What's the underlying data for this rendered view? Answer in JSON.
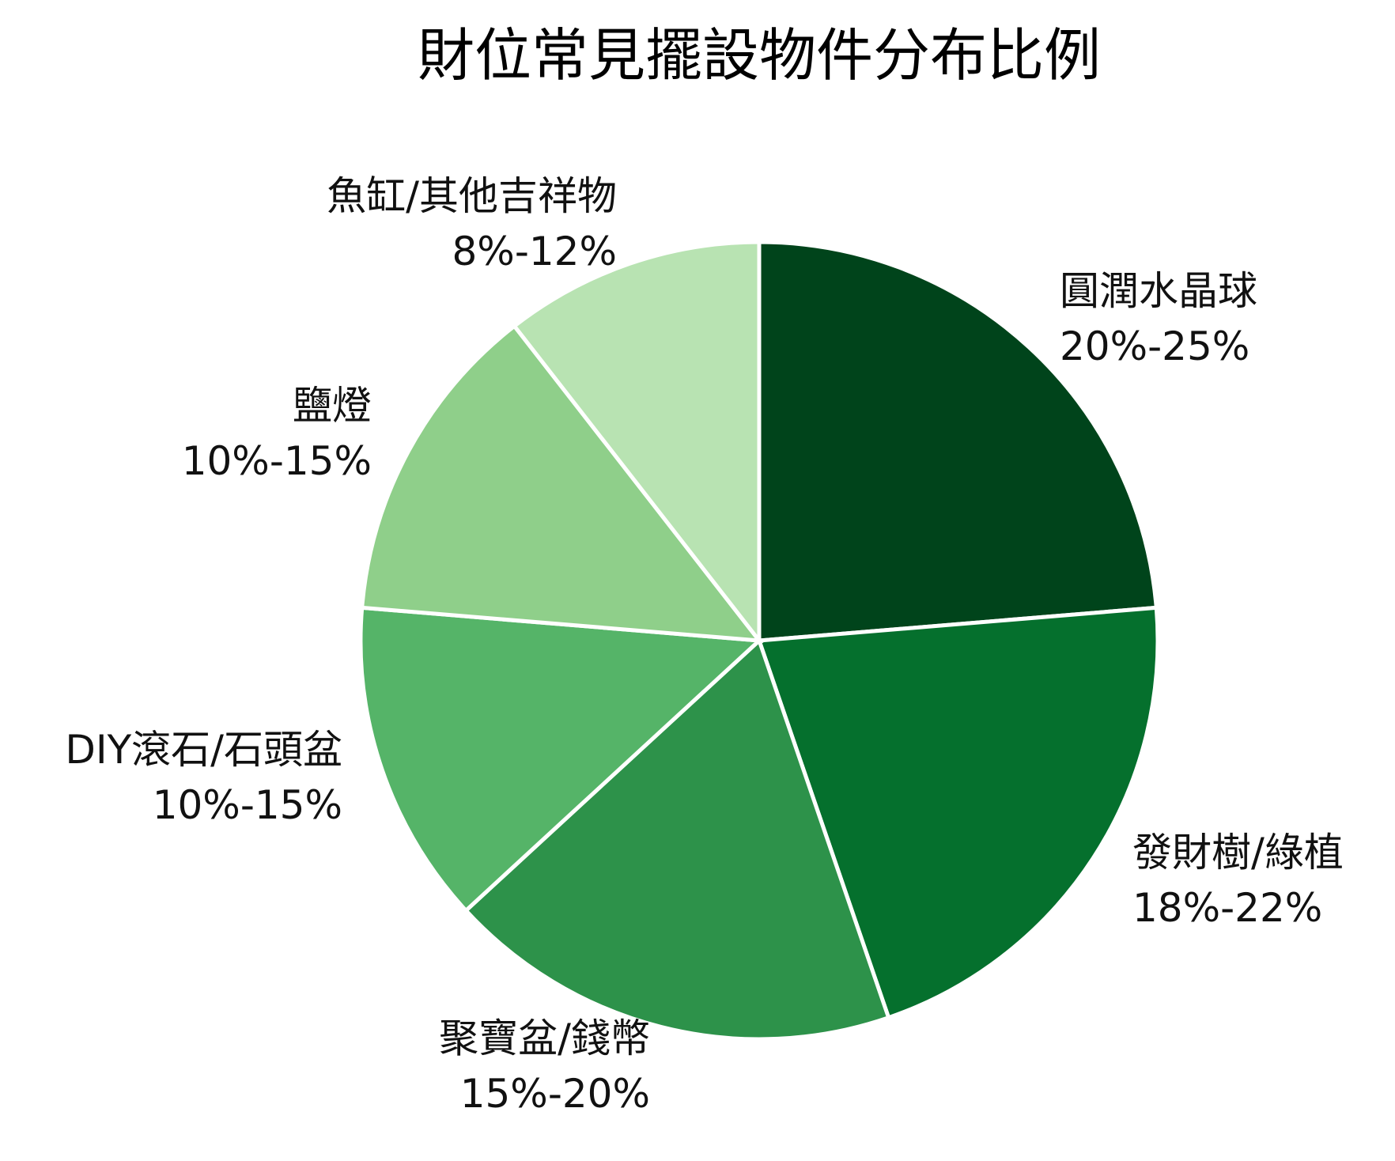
{
  "chart_data": {
    "type": "pie",
    "title": "財位常見擺設物件分布比例",
    "slices": [
      {
        "label": "圓潤水晶球",
        "range": "20%-25%",
        "value": 22.5,
        "color": "#00441b"
      },
      {
        "label": "發財樹/綠植",
        "range": "18%-22%",
        "value": 20,
        "color": "#05702d"
      },
      {
        "label": "聚寶盆/錢幣",
        "range": "15%-20%",
        "value": 17.5,
        "color": "#2d924a"
      },
      {
        "label": "DIY滾石/石頭盆",
        "range": "10%-15%",
        "value": 12.5,
        "color": "#55b468"
      },
      {
        "label": "鹽燈",
        "range": "10%-15%",
        "value": 12.5,
        "color": "#8fcf8a"
      },
      {
        "label": "魚缸/其他吉祥物",
        "range": "8%-12%",
        "value": 10,
        "color": "#b8e3b2"
      }
    ]
  }
}
